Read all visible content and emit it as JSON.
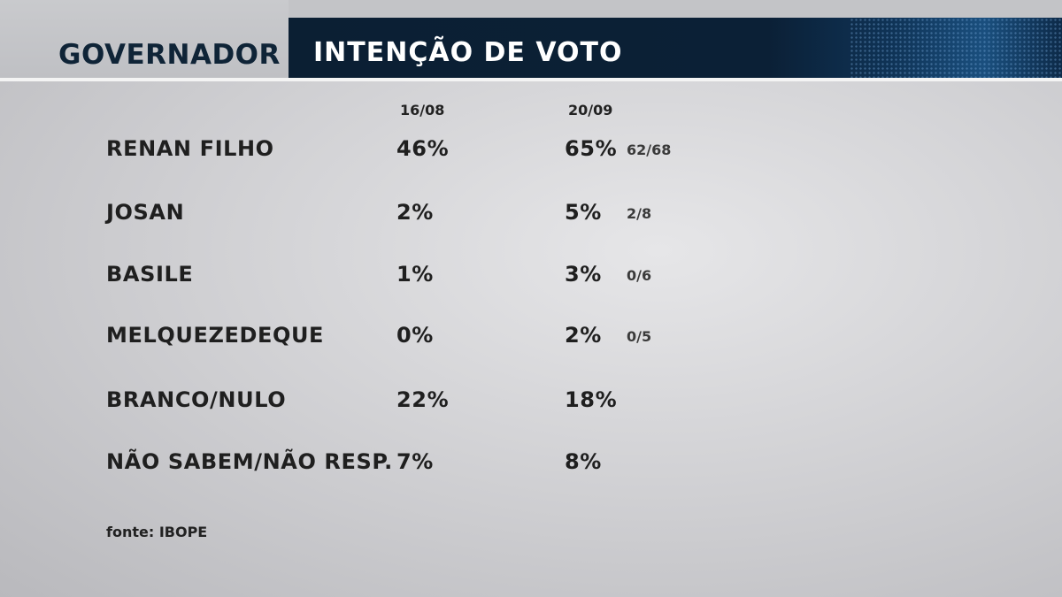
{
  "header": {
    "title": "GOVERNADOR",
    "subtitle": "INTENÇÃO DE VOTO"
  },
  "chart_data": {
    "type": "table",
    "columns": [
      "16/08",
      "20/09"
    ],
    "rows": [
      {
        "name": "RENAN FILHO",
        "v1": "46%",
        "v2": "65%",
        "range": "62/68"
      },
      {
        "name": "JOSAN",
        "v1": "2%",
        "v2": "5%",
        "range": "2/8"
      },
      {
        "name": "BASILE",
        "v1": "1%",
        "v2": "3%",
        "range": "0/6"
      },
      {
        "name": "MELQUEZEDEQUE",
        "v1": "0%",
        "v2": "2%",
        "range": "0/5"
      },
      {
        "name": "BRANCO/NULO",
        "v1": "22%",
        "v2": "18%",
        "range": ""
      },
      {
        "name": "NÃO SABEM/NÃO RESP.",
        "v1": "7%",
        "v2": "8%",
        "range": ""
      }
    ],
    "values_16_08": [
      46,
      2,
      1,
      0,
      22,
      7
    ],
    "values_20_09": [
      65,
      5,
      3,
      2,
      18,
      8
    ]
  },
  "source": "fonte: IBOPE"
}
